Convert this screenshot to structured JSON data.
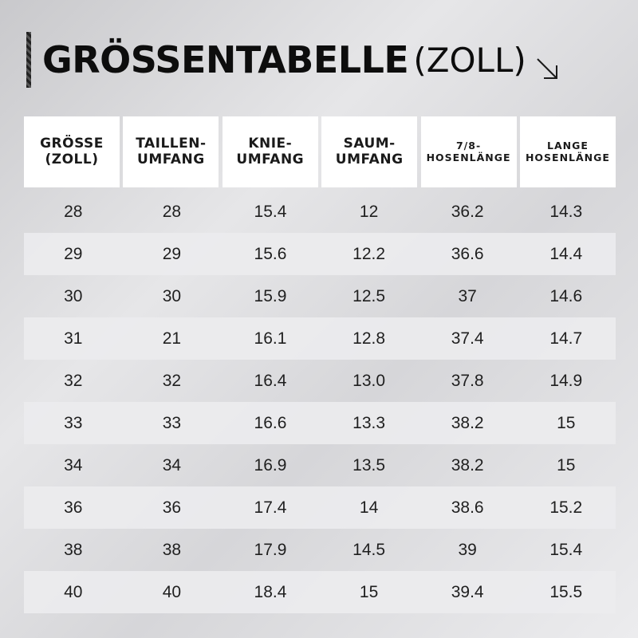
{
  "title": {
    "main": "GRÖSSENTABELLE",
    "sub": "(ZOLL)"
  },
  "table": {
    "headers": [
      {
        "lines": [
          "GRÖSSE",
          "(ZOLL)"
        ],
        "style": "big"
      },
      {
        "lines": [
          "TAILLEN-",
          "UMFANG"
        ],
        "style": "big"
      },
      {
        "lines": [
          "KNIE-",
          "UMFANG"
        ],
        "style": "big"
      },
      {
        "lines": [
          "SAUM-",
          "UMFANG"
        ],
        "style": "big"
      },
      {
        "lines": [
          "7/8-",
          "HOSENLÄNGE"
        ],
        "style": "small"
      },
      {
        "lines": [
          "LANGE",
          "HOSENLÄNGE"
        ],
        "style": "small"
      }
    ],
    "rows": [
      [
        "28",
        "28",
        "15.4",
        "12",
        "36.2",
        "14.3"
      ],
      [
        "29",
        "29",
        "15.6",
        "12.2",
        "36.6",
        "14.4"
      ],
      [
        "30",
        "30",
        "15.9",
        "12.5",
        "37",
        "14.6"
      ],
      [
        "31",
        "21",
        "16.1",
        "12.8",
        "37.4",
        "14.7"
      ],
      [
        "32",
        "32",
        "16.4",
        "13.0",
        "37.8",
        "14.9"
      ],
      [
        "33",
        "33",
        "16.6",
        "13.3",
        "38.2",
        "15"
      ],
      [
        "34",
        "34",
        "16.9",
        "13.5",
        "38.2",
        "15"
      ],
      [
        "36",
        "36",
        "17.4",
        "14",
        "38.6",
        "15.2"
      ],
      [
        "38",
        "38",
        "17.9",
        "14.5",
        "39",
        "15.4"
      ],
      [
        "40",
        "40",
        "18.4",
        "15",
        "39.4",
        "15.5"
      ]
    ]
  },
  "icons": {
    "title_arrow": "arrow-down-right-icon"
  }
}
